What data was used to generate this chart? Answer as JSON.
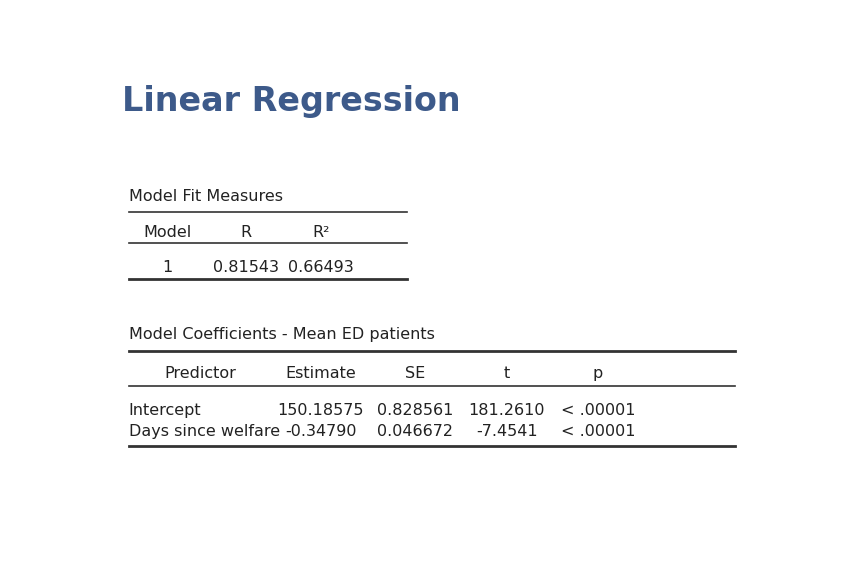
{
  "title": "Linear Regression",
  "title_color": "#3d5a8a",
  "title_fontsize": 24,
  "bg_color": "#ffffff",
  "table1_label": "Model Fit Measures",
  "table1_headers": [
    "Model",
    "R",
    "R²"
  ],
  "table1_row": [
    "1",
    "0.81543",
    "0.66493"
  ],
  "table2_label": "Model Coefficients - Mean ED patients",
  "table2_headers": [
    "Predictor",
    "Estimate",
    "SE",
    "t",
    "p"
  ],
  "table2_rows": [
    [
      "Intercept",
      "150.18575",
      "0.828561",
      "181.2610",
      "< .00001"
    ],
    [
      "Days since welfare",
      "-0.34790",
      "0.046672",
      "-7.4541",
      "< .00001"
    ]
  ],
  "line_color": "#333333",
  "text_color": "#222222",
  "label_fontsize": 11.5,
  "header_fontsize": 11.5,
  "data_fontsize": 11.5
}
